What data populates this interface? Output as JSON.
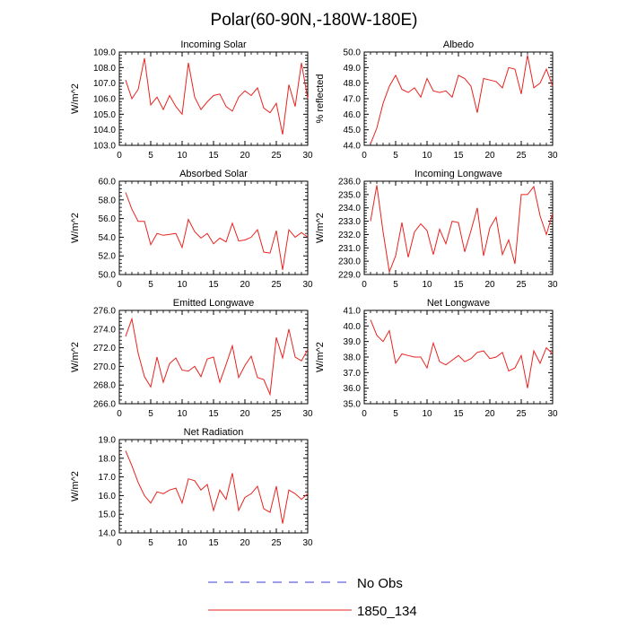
{
  "figure_title": "Polar(60-90N,-180W-180E)",
  "legend": [
    {
      "label": "No Obs",
      "color": "#3b3bd6",
      "style": "dashed"
    },
    {
      "label": "1850_134",
      "color": "#e8231e",
      "style": "solid"
    }
  ],
  "chart_data": [
    {
      "type": "line",
      "title": "Incoming Solar",
      "ylabel": "W/m^2",
      "ylim": [
        103,
        109
      ],
      "yticks": [
        "103.0",
        "104.0",
        "105.0",
        "106.0",
        "107.0",
        "108.0",
        "109.0"
      ],
      "xlim": [
        0,
        30
      ],
      "xticks": [
        "0",
        "5",
        "10",
        "15",
        "20",
        "25",
        "30"
      ],
      "series": [
        {
          "name": "1850_134",
          "color": "#e8231e",
          "x": [
            1,
            2,
            3,
            4,
            5,
            6,
            7,
            8,
            9,
            10,
            11,
            12,
            13,
            14,
            15,
            16,
            17,
            18,
            19,
            20,
            21,
            22,
            23,
            24,
            25,
            26,
            27,
            28,
            29,
            30
          ],
          "values": [
            107.2,
            106.0,
            106.6,
            108.6,
            105.6,
            106.1,
            105.3,
            106.2,
            105.5,
            105.0,
            108.3,
            106.1,
            105.3,
            105.8,
            106.2,
            106.3,
            105.5,
            105.2,
            106.1,
            106.5,
            106.2,
            106.7,
            105.4,
            105.1,
            105.7,
            103.7,
            106.9,
            105.5,
            108.3,
            106.0
          ]
        }
      ]
    },
    {
      "type": "line",
      "title": "Albedo",
      "ylabel": "% reflected",
      "ylim": [
        44,
        50
      ],
      "yticks": [
        "44.0",
        "45.0",
        "46.0",
        "47.0",
        "48.0",
        "49.0",
        "50.0"
      ],
      "xlim": [
        0,
        30
      ],
      "xticks": [
        "0",
        "5",
        "10",
        "15",
        "20",
        "25",
        "30"
      ],
      "series": [
        {
          "name": "1850_134",
          "color": "#e8231e",
          "x": [
            1,
            2,
            3,
            4,
            5,
            6,
            7,
            8,
            9,
            10,
            11,
            12,
            13,
            14,
            15,
            16,
            17,
            18,
            19,
            20,
            21,
            22,
            23,
            24,
            25,
            26,
            27,
            28,
            29,
            30
          ],
          "values": [
            44.1,
            45.1,
            46.7,
            47.8,
            48.5,
            47.6,
            47.4,
            47.7,
            47.1,
            48.3,
            47.5,
            47.4,
            47.5,
            47.1,
            48.5,
            48.3,
            47.8,
            46.1,
            48.3,
            48.2,
            48.1,
            47.7,
            49.0,
            48.9,
            47.3,
            49.8,
            47.7,
            48.0,
            48.9,
            47.8
          ]
        }
      ]
    },
    {
      "type": "line",
      "title": "Absorbed Solar",
      "ylabel": "W/m^2",
      "ylim": [
        50,
        60
      ],
      "yticks": [
        "50.0",
        "52.0",
        "54.0",
        "56.0",
        "58.0",
        "60.0"
      ],
      "xlim": [
        0,
        30
      ],
      "xticks": [
        "0",
        "5",
        "10",
        "15",
        "20",
        "25",
        "30"
      ],
      "series": [
        {
          "name": "1850_134",
          "color": "#e8231e",
          "x": [
            1,
            2,
            3,
            4,
            5,
            6,
            7,
            8,
            9,
            10,
            11,
            12,
            13,
            14,
            15,
            16,
            17,
            18,
            19,
            20,
            21,
            22,
            23,
            24,
            25,
            26,
            27,
            28,
            29,
            30
          ],
          "values": [
            58.8,
            57.0,
            55.7,
            55.7,
            53.2,
            54.4,
            54.2,
            54.3,
            54.4,
            52.9,
            55.9,
            54.6,
            53.9,
            54.4,
            53.3,
            53.9,
            53.5,
            55.5,
            53.6,
            53.7,
            54.0,
            54.8,
            52.4,
            52.3,
            54.7,
            50.5,
            54.8,
            54.0,
            54.5,
            54.0
          ]
        }
      ]
    },
    {
      "type": "line",
      "title": "Incoming Longwave",
      "ylabel": "W/m^2",
      "ylim": [
        229,
        236
      ],
      "yticks": [
        "229.0",
        "230.0",
        "231.0",
        "232.0",
        "233.0",
        "234.0",
        "235.0",
        "236.0"
      ],
      "xlim": [
        0,
        30
      ],
      "xticks": [
        "0",
        "5",
        "10",
        "15",
        "20",
        "25",
        "30"
      ],
      "series": [
        {
          "name": "1850_134",
          "color": "#e8231e",
          "x": [
            1,
            2,
            3,
            4,
            5,
            6,
            7,
            8,
            9,
            10,
            11,
            12,
            13,
            14,
            15,
            16,
            17,
            18,
            19,
            20,
            21,
            22,
            23,
            24,
            25,
            26,
            27,
            28,
            29,
            30
          ],
          "values": [
            233.0,
            235.7,
            232.2,
            229.2,
            230.4,
            232.9,
            230.3,
            232.2,
            232.8,
            232.3,
            230.5,
            232.4,
            231.3,
            233.0,
            232.9,
            230.7,
            232.3,
            234.0,
            230.4,
            232.5,
            233.3,
            230.5,
            231.6,
            229.8,
            235.0,
            235.0,
            235.6,
            233.4,
            232.0,
            233.6
          ]
        }
      ]
    },
    {
      "type": "line",
      "title": "Emitted Longwave",
      "ylabel": "W/m^2",
      "ylim": [
        266,
        276
      ],
      "yticks": [
        "266.0",
        "268.0",
        "270.0",
        "272.0",
        "274.0",
        "276.0"
      ],
      "xlim": [
        0,
        30
      ],
      "xticks": [
        "0",
        "5",
        "10",
        "15",
        "20",
        "25",
        "30"
      ],
      "series": [
        {
          "name": "1850_134",
          "color": "#e8231e",
          "x": [
            1,
            2,
            3,
            4,
            5,
            6,
            7,
            8,
            9,
            10,
            11,
            12,
            13,
            14,
            15,
            16,
            17,
            18,
            19,
            20,
            21,
            22,
            23,
            24,
            25,
            26,
            27,
            28,
            29,
            30
          ],
          "values": [
            273.2,
            275.1,
            271.4,
            268.9,
            267.8,
            271.0,
            268.3,
            270.3,
            270.9,
            269.6,
            269.5,
            270.0,
            268.9,
            270.8,
            271.0,
            268.3,
            270.2,
            272.2,
            268.8,
            270.1,
            271.1,
            268.8,
            268.6,
            267.0,
            273.1,
            270.9,
            274.0,
            271.0,
            270.6,
            271.8
          ]
        }
      ]
    },
    {
      "type": "line",
      "title": "Net Longwave",
      "ylabel": "W/m^2",
      "ylim": [
        35,
        41
      ],
      "yticks": [
        "35.0",
        "36.0",
        "37.0",
        "38.0",
        "39.0",
        "40.0",
        "41.0"
      ],
      "xlim": [
        0,
        30
      ],
      "xticks": [
        "0",
        "5",
        "10",
        "15",
        "20",
        "25",
        "30"
      ],
      "series": [
        {
          "name": "1850_134",
          "color": "#e8231e",
          "x": [
            1,
            2,
            3,
            4,
            5,
            6,
            7,
            8,
            9,
            10,
            11,
            12,
            13,
            14,
            15,
            16,
            17,
            18,
            19,
            20,
            21,
            22,
            23,
            24,
            25,
            26,
            27,
            28,
            29,
            30
          ],
          "values": [
            40.4,
            39.4,
            39.0,
            39.7,
            37.6,
            38.2,
            38.1,
            38.0,
            38.0,
            37.3,
            38.9,
            37.7,
            37.5,
            37.8,
            38.1,
            37.7,
            37.9,
            38.3,
            38.4,
            37.9,
            38.0,
            38.3,
            37.1,
            37.3,
            38.1,
            36.0,
            38.4,
            37.6,
            38.6,
            38.2
          ]
        }
      ]
    },
    {
      "type": "line",
      "title": "Net Radiation",
      "ylabel": "W/m^2",
      "ylim": [
        14,
        19
      ],
      "yticks": [
        "14.0",
        "15.0",
        "16.0",
        "17.0",
        "18.0",
        "19.0"
      ],
      "xlim": [
        0,
        30
      ],
      "xticks": [
        "0",
        "5",
        "10",
        "15",
        "20",
        "25",
        "30"
      ],
      "series": [
        {
          "name": "1850_134",
          "color": "#e8231e",
          "x": [
            1,
            2,
            3,
            4,
            5,
            6,
            7,
            8,
            9,
            10,
            11,
            12,
            13,
            14,
            15,
            16,
            17,
            18,
            19,
            20,
            21,
            22,
            23,
            24,
            25,
            26,
            27,
            28,
            29,
            30
          ],
          "values": [
            18.4,
            17.6,
            16.7,
            16.0,
            15.6,
            16.2,
            16.1,
            16.3,
            16.4,
            15.6,
            16.9,
            16.8,
            16.3,
            16.6,
            15.2,
            16.3,
            15.8,
            17.2,
            15.2,
            15.9,
            16.1,
            16.5,
            15.3,
            15.1,
            16.5,
            14.5,
            16.3,
            16.1,
            15.8,
            16.1
          ]
        }
      ]
    }
  ]
}
